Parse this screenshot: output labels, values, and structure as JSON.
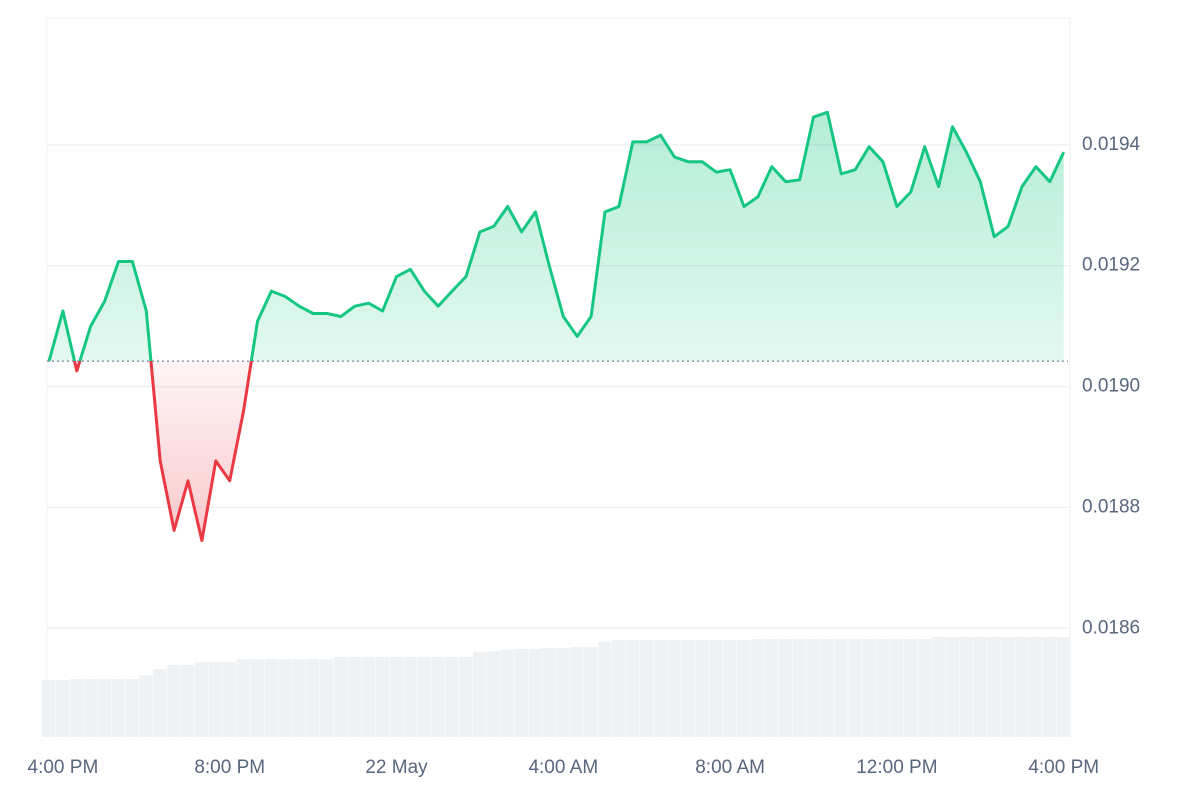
{
  "chart_data": {
    "type": "area",
    "categories": [
      null,
      "4:00 PM",
      null,
      null,
      null,
      null,
      null,
      null,
      null,
      null,
      null,
      null,
      null,
      "8:00 PM",
      null,
      null,
      null,
      null,
      null,
      null,
      null,
      null,
      null,
      null,
      null,
      "22 May",
      null,
      null,
      null,
      null,
      null,
      null,
      null,
      null,
      null,
      null,
      null,
      "4:00 AM",
      null,
      null,
      null,
      null,
      null,
      null,
      null,
      null,
      null,
      null,
      null,
      "8:00 AM",
      null,
      null,
      null,
      null,
      null,
      null,
      null,
      null,
      null,
      null,
      null,
      "12:00 PM",
      null,
      null,
      null,
      null,
      null,
      null,
      null,
      null,
      null,
      null,
      null,
      "4:00 PM"
    ],
    "series": [
      {
        "up_color": "#16c784",
        "down_color": "#ea3943",
        "values": [
          0.019042,
          0.019125,
          0.019026,
          0.0191,
          0.019141,
          0.019207,
          0.019207,
          0.019125,
          0.018877,
          0.018762,
          0.018844,
          0.018745,
          0.018877,
          0.018844,
          0.01896,
          0.019108,
          0.019158,
          0.019149,
          0.019133,
          0.019121,
          0.019121,
          0.019116,
          0.019133,
          0.019138,
          0.019125,
          0.019182,
          0.019194,
          0.019158,
          0.019133,
          0.019158,
          0.019182,
          0.019256,
          0.019265,
          0.019298,
          0.019256,
          0.019289,
          0.019199,
          0.019116,
          0.019083,
          0.019116,
          0.019289,
          0.019298,
          0.019405,
          0.019405,
          0.019416,
          0.01938,
          0.019372,
          0.019372,
          0.019355,
          0.019359,
          0.019298,
          0.019314,
          0.019364,
          0.019339,
          0.019342,
          0.019446,
          0.019454,
          0.019352,
          0.019359,
          0.019397,
          0.019372,
          0.019298,
          0.019322,
          0.019397,
          0.019331,
          0.01943,
          0.019388,
          0.019339,
          0.019248,
          0.019265,
          0.019331,
          0.019364,
          0.019339,
          0.019388
        ]
      }
    ],
    "volume": {
      "color": "#eff2f5",
      "values": [
        57,
        57,
        58,
        58,
        58,
        58,
        58,
        62,
        68,
        72,
        72,
        75,
        75,
        75,
        78,
        78,
        78,
        78,
        78,
        78,
        78,
        80,
        80,
        80,
        80,
        80,
        80,
        80,
        80,
        80,
        80,
        85,
        86,
        87,
        88,
        88,
        89,
        89,
        90,
        90,
        95,
        97,
        97,
        97,
        97,
        97,
        97,
        97,
        97,
        97,
        97,
        98,
        98,
        98,
        98,
        98,
        98,
        98,
        98,
        98,
        98,
        98,
        98,
        98,
        100,
        100,
        100,
        100,
        100,
        100,
        100,
        100,
        100,
        100
      ]
    },
    "ylim": [
      0.01842,
      0.01961
    ],
    "yticks": [
      0.0186,
      0.0188,
      {
        "value": 0.019,
        "label": "0.0190"
      },
      0.0192,
      0.0194
    ],
    "grid": true
  }
}
